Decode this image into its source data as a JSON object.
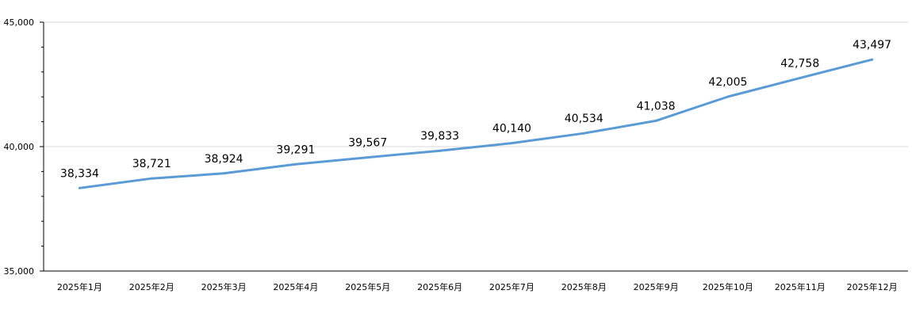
{
  "chart_data": {
    "type": "line",
    "categories": [
      "2025年1月",
      "2025年2月",
      "2025年3月",
      "2025年4月",
      "2025年5月",
      "2025年6月",
      "2025年7月",
      "2025年8月",
      "2025年9月",
      "2025年10月",
      "2025年11月",
      "2025年12月"
    ],
    "series": [
      {
        "values": [
          38334,
          38721,
          38924,
          39291,
          39567,
          39833,
          40140,
          40534,
          41038,
          42005,
          42758,
          43497
        ],
        "value_labels": [
          "38,334",
          "38,721",
          "38,924",
          "39,291",
          "39,567",
          "39,833",
          "40,140",
          "40,534",
          "41,038",
          "42,005",
          "42,758",
          "43,497"
        ],
        "color": "#5b9bd5"
      }
    ],
    "y_ticks": [
      35000,
      40000,
      45000
    ],
    "y_tick_labels": [
      "35,000",
      "40,000",
      "45,000"
    ],
    "ylim": [
      35000,
      45000
    ],
    "y_minor_ticks_per_major": 5,
    "grid": true,
    "legend": "none",
    "title": "",
    "xlabel": "",
    "ylabel": ""
  }
}
